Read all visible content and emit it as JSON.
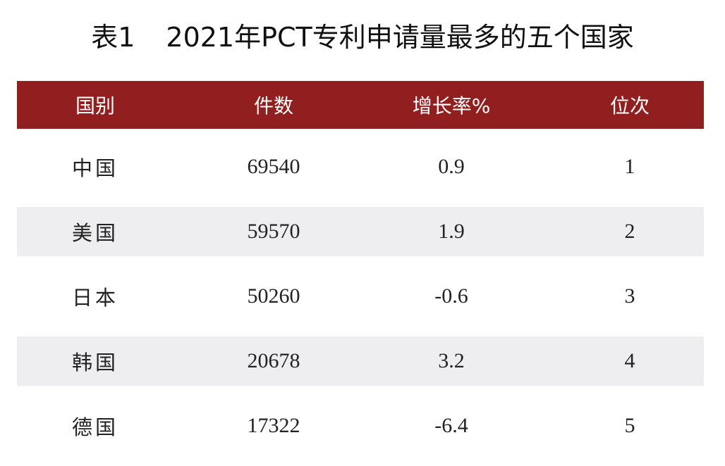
{
  "title": {
    "label": "表1",
    "text": "2021年PCT专利申请量最多的五个国家"
  },
  "table": {
    "header": [
      "国别",
      "件数",
      "增长率%",
      "位次"
    ],
    "rows": [
      [
        "中国",
        69540,
        0.9,
        1
      ],
      [
        "美国",
        59570,
        1.9,
        2
      ],
      [
        "日本",
        50260,
        -0.6,
        3
      ],
      [
        "韩国",
        20678,
        3.2,
        4
      ],
      [
        "德国",
        17322,
        -6.4,
        5
      ]
    ]
  }
}
